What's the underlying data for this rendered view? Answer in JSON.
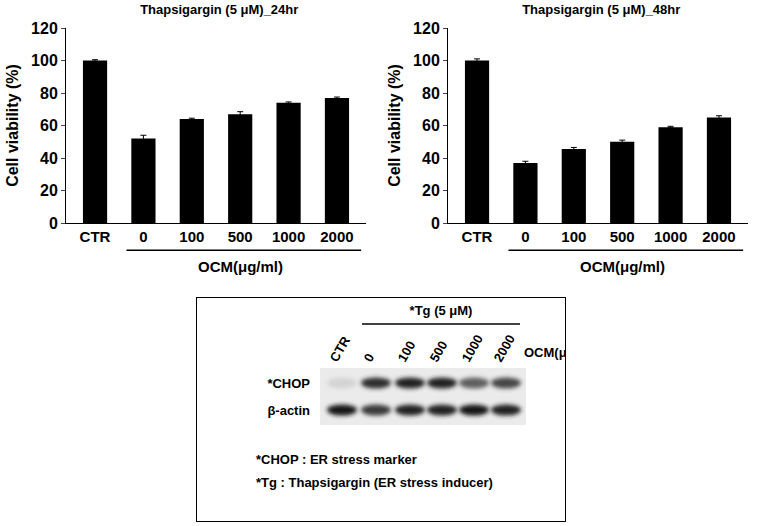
{
  "chart_data": [
    {
      "type": "bar",
      "title": "Thapsigargin (5 μM)_24hr",
      "y_label": "Cell viability (%)",
      "x_label": "OCM(μg/ml)",
      "categories": [
        "CTR",
        "0",
        "100",
        "500",
        "1000",
        "2000"
      ],
      "values": [
        100,
        52,
        64,
        67,
        74,
        77
      ],
      "errors": [
        0.5,
        2,
        0.5,
        1.5,
        0.5,
        0.5
      ],
      "color": "#000000",
      "ylim": [
        0,
        120
      ],
      "yticks": [
        0,
        20,
        40,
        60,
        80,
        100,
        120
      ],
      "grid": false
    },
    {
      "type": "bar",
      "title": "Thapsigargin (5 μM)_48hr",
      "y_label": "Cell viability (%)",
      "x_label": "OCM(μg/ml)",
      "categories": [
        "CTR",
        "0",
        "100",
        "500",
        "1000",
        "2000"
      ],
      "values": [
        100,
        37,
        45.5,
        50,
        59,
        65
      ],
      "errors": [
        1,
        1,
        1,
        1,
        0.5,
        1
      ],
      "color": "#000000",
      "ylim": [
        0,
        120
      ],
      "yticks": [
        0,
        20,
        40,
        60,
        80,
        100,
        120
      ],
      "grid": false
    }
  ],
  "blot": {
    "treatment_label": "*Tg (5 μM)",
    "dose_label": "OCM(μg/ml)",
    "lanes": [
      "CTR",
      "0",
      "100",
      "500",
      "1000",
      "2000"
    ],
    "rows": [
      {
        "name": "*CHOP",
        "intensity": [
          0.1,
          0.8,
          0.85,
          0.85,
          0.6,
          0.7
        ]
      },
      {
        "name": "β-actin",
        "intensity": [
          0.9,
          0.75,
          0.85,
          0.85,
          0.9,
          0.85
        ]
      }
    ],
    "notes": [
      "*CHOP : ER stress marker",
      "*Tg : Thapsigargin (ER stress inducer)"
    ]
  }
}
